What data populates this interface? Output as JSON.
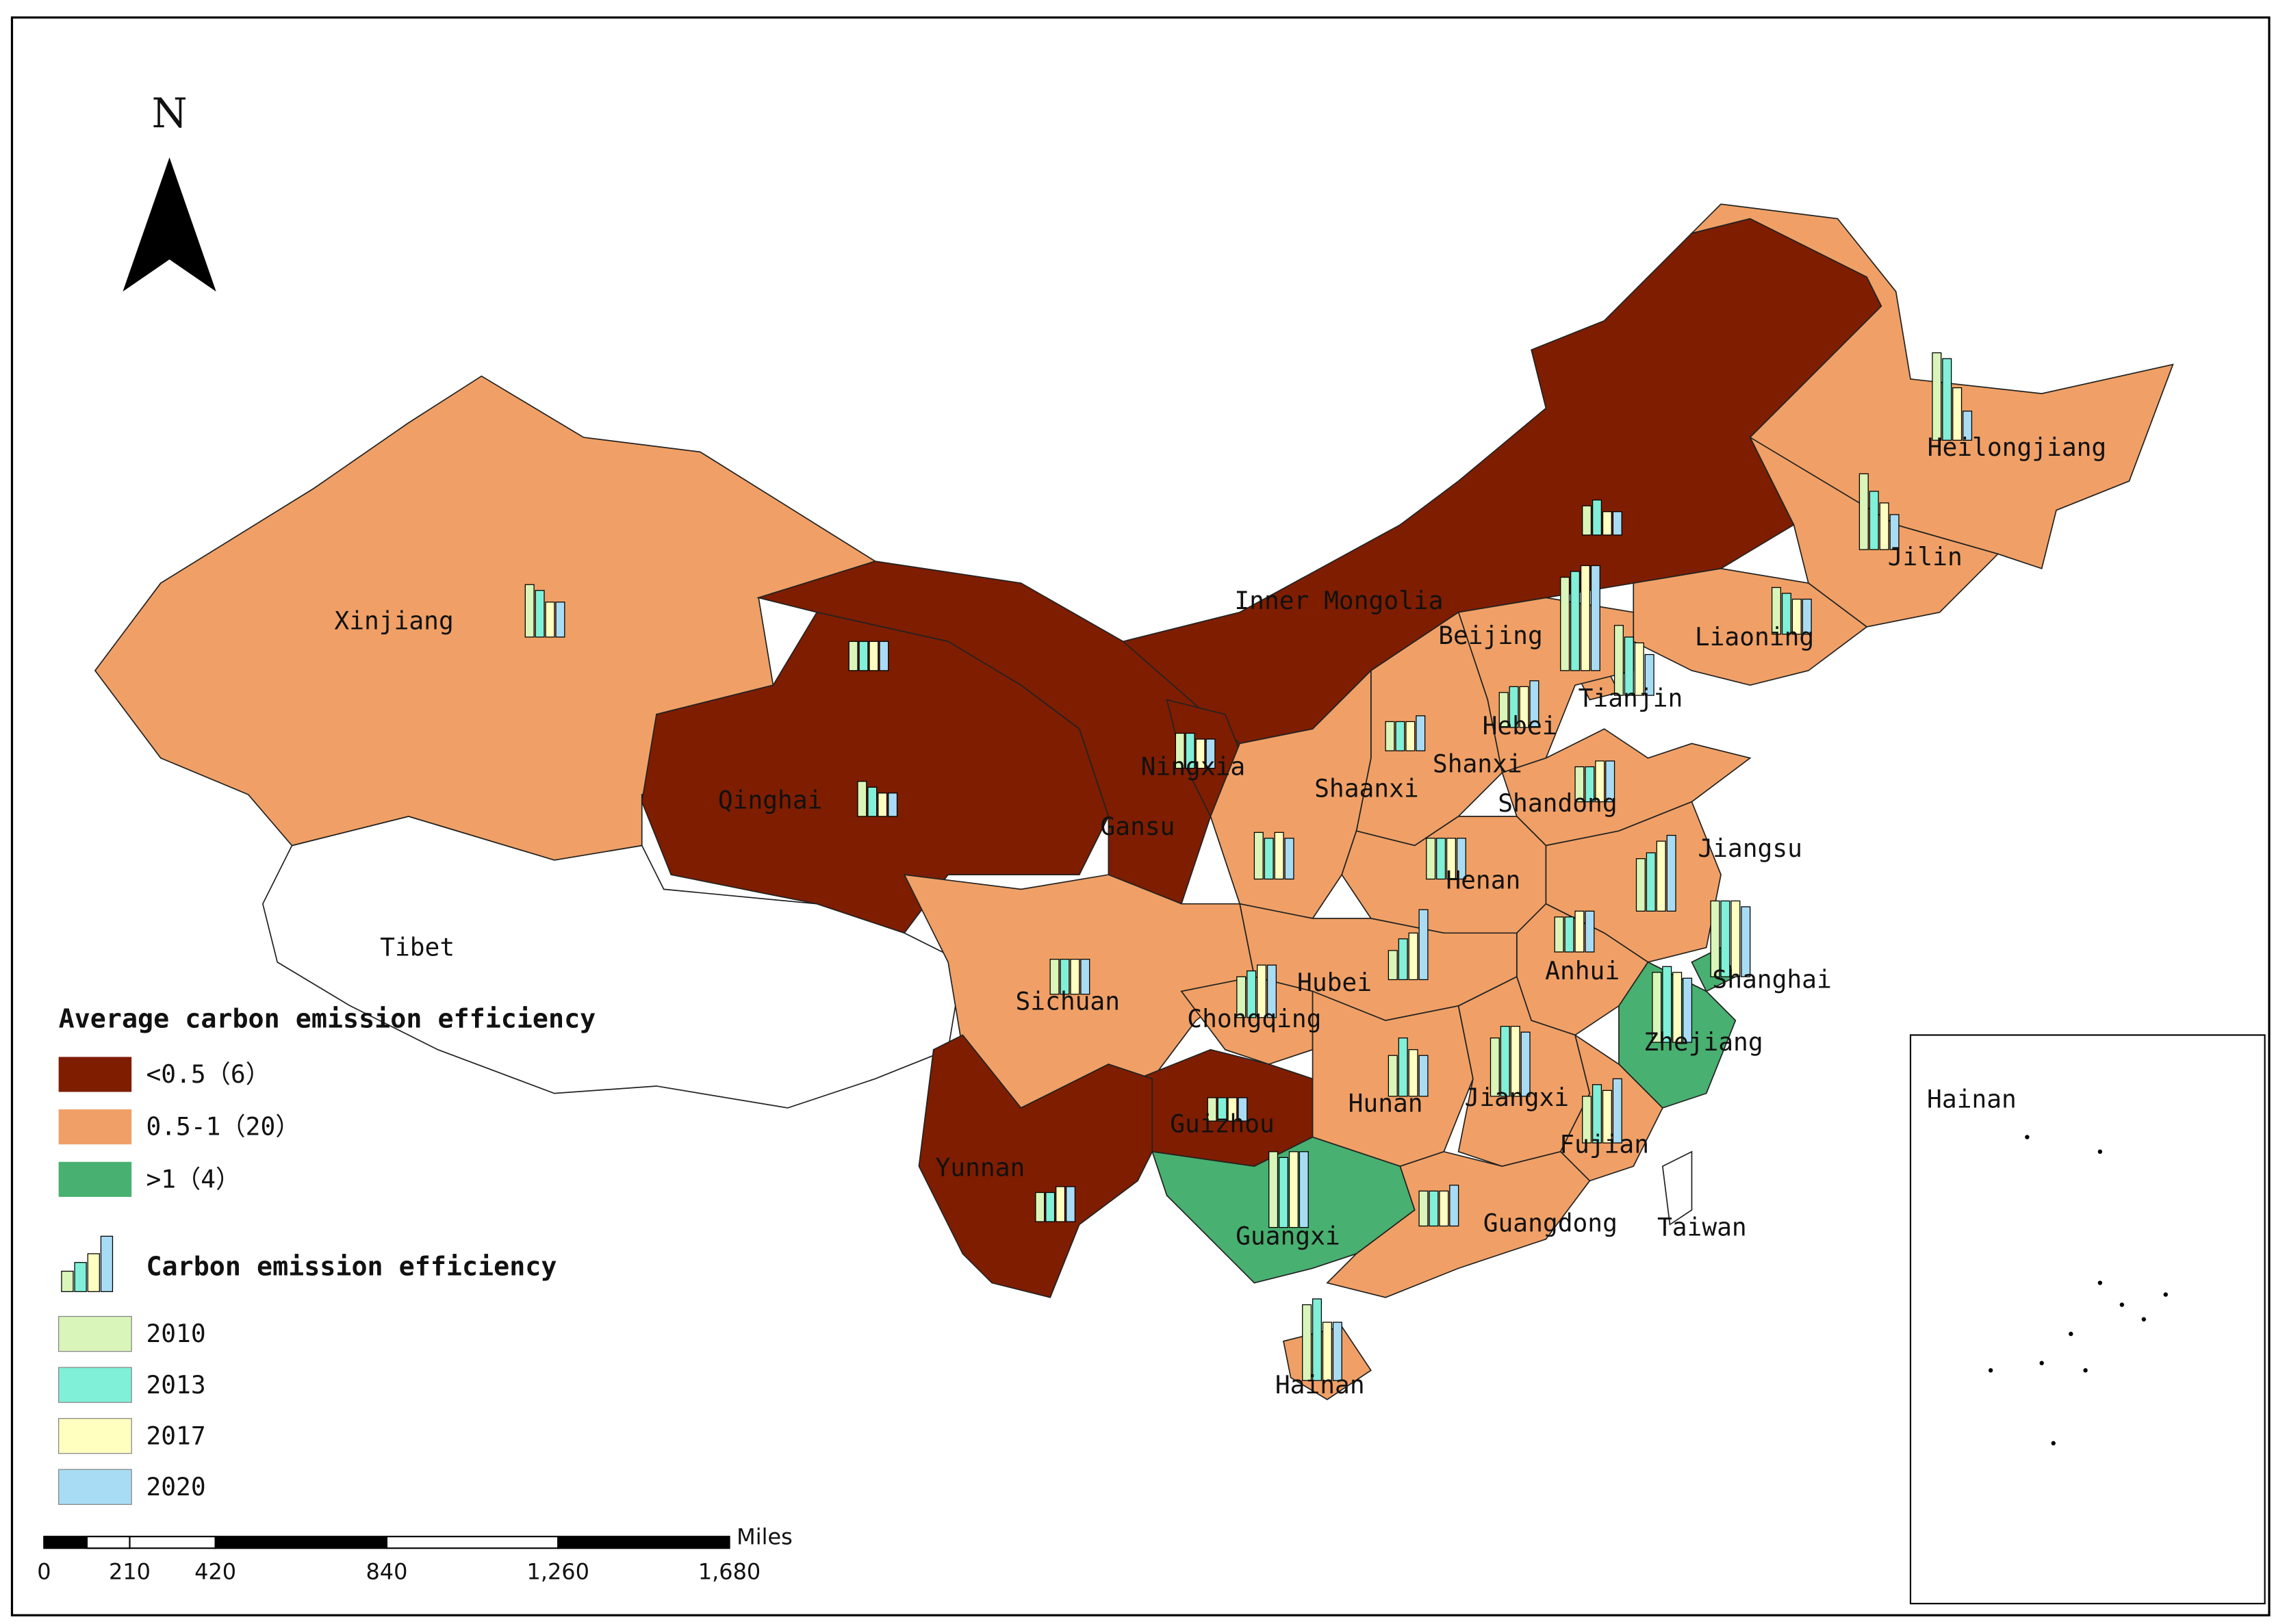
{
  "north": "N",
  "legend": {
    "title": "Average carbon emission efficiency",
    "classes": [
      {
        "label": "<0.5（6）",
        "color": "#7f1d00"
      },
      {
        "label": "0.5-1（20）",
        "color": "#f0a066"
      },
      {
        "label": ">1（4）",
        "color": "#48b070"
      }
    ],
    "chart_title": "Carbon emission efficiency",
    "years": [
      {
        "label": "2010",
        "color": "#d9f5b9"
      },
      {
        "label": "2013",
        "color": "#80f0d8"
      },
      {
        "label": "2017",
        "color": "#ffffc0"
      },
      {
        "label": "2020",
        "color": "#a8dcf5"
      }
    ]
  },
  "scale_bar": {
    "unit": "Miles",
    "xlim": [
      0,
      1680
    ],
    "ticks": [
      0,
      210,
      420,
      840,
      {
        "value": 1260,
        "label": "1,260"
      },
      {
        "value": 1680,
        "label": "1,680"
      }
    ]
  },
  "provinces": [
    {
      "name": "Xinjiang",
      "class": 1,
      "values": [
        0.9,
        0.8,
        0.6,
        0.6
      ]
    },
    {
      "name": "Gansu",
      "class": 0,
      "values": [
        0.5,
        0.5,
        0.5,
        0.5
      ]
    },
    {
      "name": "Qinghai",
      "class": 0,
      "values": [
        0.6,
        0.5,
        0.4,
        0.4
      ]
    },
    {
      "name": "Inner Mongolia",
      "class": 0,
      "values": [
        0.5,
        0.6,
        0.4,
        0.4
      ]
    },
    {
      "name": "Heilongjiang",
      "class": 1,
      "values": [
        1.5,
        1.4,
        0.9,
        0.5
      ]
    },
    {
      "name": "Jilin",
      "class": 1,
      "values": [
        1.3,
        1.0,
        0.8,
        0.6
      ]
    },
    {
      "name": "Liaoning",
      "class": 1,
      "values": [
        0.8,
        0.7,
        0.6,
        0.6
      ]
    },
    {
      "name": "Beijing",
      "class": 2,
      "values": [
        1.6,
        1.7,
        1.8,
        1.8
      ]
    },
    {
      "name": "Tianjin",
      "class": 1,
      "values": [
        1.2,
        1.0,
        0.9,
        0.7
      ]
    },
    {
      "name": "Hebei",
      "class": 1,
      "values": [
        0.6,
        0.7,
        0.7,
        0.8
      ]
    },
    {
      "name": "Shanxi",
      "class": 1,
      "values": [
        0.5,
        0.5,
        0.5,
        0.6
      ]
    },
    {
      "name": "Shandong",
      "class": 1,
      "values": [
        0.6,
        0.6,
        0.7,
        0.7
      ]
    },
    {
      "name": "Ningxia",
      "class": 0,
      "values": [
        0.6,
        0.6,
        0.5,
        0.5
      ]
    },
    {
      "name": "Shaanxi",
      "class": 1,
      "values": [
        0.8,
        0.7,
        0.8,
        0.7
      ]
    },
    {
      "name": "Henan",
      "class": 1,
      "values": [
        0.7,
        0.7,
        0.7,
        0.7
      ]
    },
    {
      "name": "Jiangsu",
      "class": 1,
      "values": [
        0.9,
        1.0,
        1.2,
        1.3
      ]
    },
    {
      "name": "Shanghai",
      "class": 2,
      "values": [
        1.3,
        1.3,
        1.3,
        1.2
      ]
    },
    {
      "name": "Anhui",
      "class": 1,
      "values": [
        0.6,
        0.6,
        0.7,
        0.7
      ]
    },
    {
      "name": "Hubei",
      "class": 1,
      "values": [
        0.5,
        0.7,
        0.8,
        1.2
      ]
    },
    {
      "name": "Sichuan",
      "class": 1,
      "values": [
        0.6,
        0.6,
        0.6,
        0.6
      ]
    },
    {
      "name": "Chongqing",
      "class": 1,
      "values": [
        0.7,
        0.8,
        0.9,
        0.9
      ]
    },
    {
      "name": "Zhejiang",
      "class": 2,
      "values": [
        1.2,
        1.3,
        1.2,
        1.1
      ]
    },
    {
      "name": "Guizhou",
      "class": 0,
      "values": [
        0.4,
        0.4,
        0.4,
        0.4
      ]
    },
    {
      "name": "Hunan",
      "class": 1,
      "values": [
        0.7,
        1.0,
        0.8,
        0.7
      ]
    },
    {
      "name": "Jiangxi",
      "class": 1,
      "values": [
        1.0,
        1.2,
        1.2,
        1.1
      ]
    },
    {
      "name": "Fujian",
      "class": 1,
      "values": [
        0.8,
        1.0,
        0.9,
        1.1
      ]
    },
    {
      "name": "Yunnan",
      "class": 0,
      "values": [
        0.5,
        0.5,
        0.6,
        0.6
      ]
    },
    {
      "name": "Guangxi",
      "class": 2,
      "values": [
        1.3,
        1.2,
        1.3,
        1.3
      ]
    },
    {
      "name": "Guangdong",
      "class": 1,
      "values": [
        0.6,
        0.6,
        0.6,
        0.7
      ]
    },
    {
      "name": "Hainan",
      "class": 1,
      "values": [
        1.3,
        1.4,
        1.0,
        1.0
      ]
    }
  ],
  "unclassified": [
    "Tibet",
    "Taiwan"
  ],
  "inset_label": "Hainan"
}
